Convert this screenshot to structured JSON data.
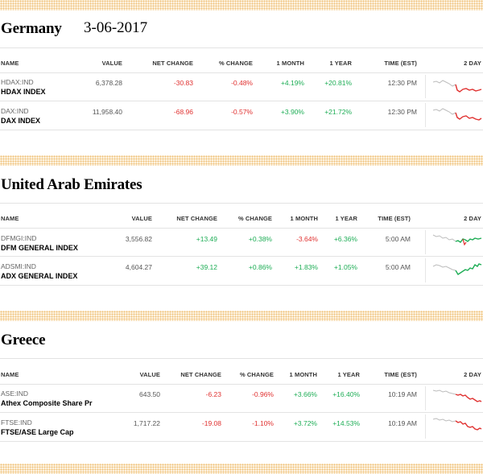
{
  "headers": {
    "name": "NAME",
    "value": "VALUE",
    "net_change": "NET CHANGE",
    "pct_change": "% CHANGE",
    "one_month": "1 MONTH",
    "one_year": "1 YEAR",
    "time": "TIME (EST)",
    "two_day": "2 DAY"
  },
  "sections": [
    {
      "title": "Germany",
      "date": "3-06-2017",
      "rows": [
        {
          "symbol": "HDAX:IND",
          "name": "HDAX INDEX",
          "value": "6,378.28",
          "net_change": "-30.83",
          "pct_change": "-0.48%",
          "one_month": "+4.19%",
          "one_year": "+20.81%",
          "time": "12:30 PM",
          "trend": "down"
        },
        {
          "symbol": "DAX:IND",
          "name": "DAX INDEX",
          "value": "11,958.40",
          "net_change": "-68.96",
          "pct_change": "-0.57%",
          "one_month": "+3.90%",
          "one_year": "+21.72%",
          "time": "12:30 PM",
          "trend": "down"
        }
      ]
    },
    {
      "title": "United Arab Emirates",
      "rows": [
        {
          "symbol": "DFMGI:IND",
          "name": "DFM GENERAL INDEX",
          "value": "3,556.82",
          "net_change": "+13.49",
          "pct_change": "+0.38%",
          "one_month": "-3.64%",
          "one_year": "+6.36%",
          "time": "5:00 AM",
          "trend": "up"
        },
        {
          "symbol": "ADSMI:IND",
          "name": "ADX GENERAL INDEX",
          "value": "4,604.27",
          "net_change": "+39.12",
          "pct_change": "+0.86%",
          "one_month": "+1.83%",
          "one_year": "+1.05%",
          "time": "5:00 AM",
          "trend": "up"
        }
      ]
    },
    {
      "title": "Greece",
      "rows": [
        {
          "symbol": "ASE:IND",
          "name": "Athex Composite Share Pr",
          "value": "643.50",
          "net_change": "-6.23",
          "pct_change": "-0.96%",
          "one_month": "+3.66%",
          "one_year": "+16.40%",
          "time": "10:19 AM",
          "trend": "down"
        },
        {
          "symbol": "FTSE:IND",
          "name": "FTSE/ASE Large Cap",
          "value": "1,717.22",
          "net_change": "-19.08",
          "pct_change": "-1.10%",
          "one_month": "+3.72%",
          "one_year": "+14.53%",
          "time": "10:19 AM",
          "trend": "down"
        }
      ]
    }
  ],
  "colors": {
    "negative": "#e0302f",
    "positive": "#1dad55",
    "accent_dots": "#f0c27a"
  }
}
